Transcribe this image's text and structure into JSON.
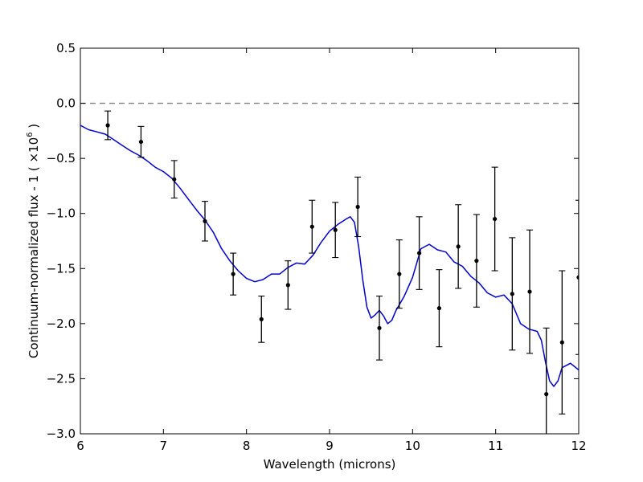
{
  "chart_data": {
    "type": "scatter",
    "title": "",
    "xlabel": "Wavelength (microns)",
    "ylabel": "Continuum-normalized flux - 1 ( ×10",
    "ylabel_exponent": "6",
    "ylabel_tail": " )",
    "xlim": [
      6,
      12
    ],
    "ylim": [
      -3.0,
      0.5
    ],
    "x_ticks": [
      6,
      7,
      8,
      9,
      10,
      11,
      12
    ],
    "x_tick_labels": [
      "6",
      "7",
      "8",
      "9",
      "10",
      "11",
      "12"
    ],
    "y_ticks": [
      0.5,
      0.0,
      -0.5,
      -1.0,
      -1.5,
      -2.0,
      -2.5,
      -3.0
    ],
    "y_tick_labels": [
      "0.5",
      "0.0",
      "−0.5",
      "−1.0",
      "−1.5",
      "−2.0",
      "−2.5",
      "−3.0"
    ],
    "grid": false,
    "legend": "none",
    "colors": {
      "data": "#000000",
      "model": "#0000cc",
      "reference": "#808080"
    },
    "reference_line": {
      "y": 0.0,
      "style": "dashed"
    },
    "series": [
      {
        "kind": "errorbar",
        "x": [
          6.33,
          6.73,
          7.13,
          7.5,
          7.84,
          8.18,
          8.5,
          8.79,
          9.07,
          9.34,
          9.6,
          9.84,
          10.08,
          10.32,
          10.55,
          10.77,
          10.99,
          11.2,
          11.41,
          11.61,
          11.8,
          12.0
        ],
        "y": [
          -0.2,
          -0.35,
          -0.69,
          -1.07,
          -1.55,
          -1.96,
          -1.65,
          -1.12,
          -1.15,
          -0.94,
          -2.04,
          -1.55,
          -1.36,
          -1.86,
          -1.3,
          -1.43,
          -1.05,
          -1.73,
          -1.71,
          -2.64,
          -2.17,
          -1.58
        ],
        "yerr": [
          0.13,
          0.14,
          0.17,
          0.18,
          0.19,
          0.21,
          0.22,
          0.24,
          0.25,
          0.27,
          0.29,
          0.31,
          0.33,
          0.35,
          0.38,
          0.42,
          0.47,
          0.51,
          0.56,
          0.6,
          0.65,
          0.7
        ]
      },
      {
        "kind": "line",
        "x": [
          6.0,
          6.1,
          6.2,
          6.3,
          6.4,
          6.5,
          6.6,
          6.7,
          6.8,
          6.9,
          7.0,
          7.1,
          7.2,
          7.3,
          7.4,
          7.5,
          7.6,
          7.7,
          7.8,
          7.9,
          8.0,
          8.1,
          8.2,
          8.3,
          8.4,
          8.5,
          8.6,
          8.7,
          8.8,
          8.9,
          9.0,
          9.1,
          9.2,
          9.25,
          9.3,
          9.35,
          9.4,
          9.45,
          9.5,
          9.55,
          9.6,
          9.65,
          9.7,
          9.75,
          9.8,
          9.9,
          10.0,
          10.1,
          10.2,
          10.3,
          10.4,
          10.5,
          10.6,
          10.7,
          10.8,
          10.9,
          11.0,
          11.1,
          11.2,
          11.3,
          11.4,
          11.5,
          11.55,
          11.6,
          11.65,
          11.7,
          11.75,
          11.8,
          11.9,
          12.0
        ],
        "y": [
          -0.2,
          -0.24,
          -0.26,
          -0.28,
          -0.33,
          -0.38,
          -0.43,
          -0.47,
          -0.52,
          -0.58,
          -0.62,
          -0.68,
          -0.77,
          -0.87,
          -0.97,
          -1.06,
          -1.17,
          -1.32,
          -1.43,
          -1.52,
          -1.59,
          -1.62,
          -1.6,
          -1.55,
          -1.55,
          -1.49,
          -1.45,
          -1.46,
          -1.38,
          -1.26,
          -1.16,
          -1.1,
          -1.05,
          -1.03,
          -1.08,
          -1.3,
          -1.6,
          -1.85,
          -1.95,
          -1.92,
          -1.88,
          -1.93,
          -2.0,
          -1.97,
          -1.88,
          -1.75,
          -1.58,
          -1.32,
          -1.28,
          -1.33,
          -1.35,
          -1.44,
          -1.48,
          -1.57,
          -1.63,
          -1.72,
          -1.76,
          -1.74,
          -1.82,
          -2.0,
          -2.05,
          -2.07,
          -2.15,
          -2.35,
          -2.52,
          -2.57,
          -2.52,
          -2.4,
          -2.36,
          -2.42
        ]
      }
    ]
  }
}
